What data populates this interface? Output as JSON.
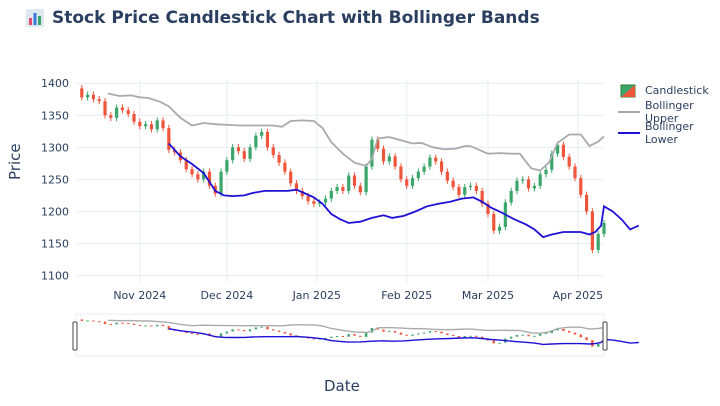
{
  "title": "Stock Price Candlestick Chart with Bollinger Bands",
  "title_icon": "bar-chart-icon",
  "colors": {
    "increasing": "#3aa66a",
    "decreasing": "#ef553b",
    "upper_band": "#aaaaaa",
    "lower_band": "#1f10d6",
    "grid": "#e8ecf2",
    "text": "#2a3f5f"
  },
  "chart_data": {
    "type": "candlestick",
    "xlabel": "Date",
    "ylabel": "Price",
    "ylim": [
      1090,
      1405
    ],
    "yticks": [
      1100,
      1150,
      1200,
      1250,
      1300,
      1350,
      1400
    ],
    "xticks": [
      {
        "date": "2024-11-01",
        "label": "Nov 2024"
      },
      {
        "date": "2024-12-01",
        "label": "Dec 2024"
      },
      {
        "date": "2025-01-01",
        "label": "Jan 2025"
      },
      {
        "date": "2025-02-01",
        "label": "Feb 2025"
      },
      {
        "date": "2025-03-01",
        "label": "Mar 2025"
      },
      {
        "date": "2025-04-01",
        "label": "Apr 2025"
      }
    ],
    "x_start": "2024-10-10",
    "x_end": "2025-04-10",
    "legend": {
      "position": "top-right",
      "items": [
        "Candlestick",
        "Bollinger Upper",
        "Bollinger Lower"
      ]
    },
    "rangeslider": true,
    "close": [
      [
        "2024-10-10",
        1392
      ],
      [
        "2024-10-12",
        1378
      ],
      [
        "2024-10-14",
        1382
      ],
      [
        "2024-10-16",
        1375
      ],
      [
        "2024-10-18",
        1372
      ],
      [
        "2024-10-20",
        1350
      ],
      [
        "2024-10-22",
        1346
      ],
      [
        "2024-10-24",
        1362
      ],
      [
        "2024-10-26",
        1358
      ],
      [
        "2024-10-28",
        1352
      ],
      [
        "2024-10-30",
        1340
      ],
      [
        "2024-11-01",
        1333
      ],
      [
        "2024-11-03",
        1336
      ],
      [
        "2024-11-05",
        1328
      ],
      [
        "2024-11-07",
        1342
      ],
      [
        "2024-11-09",
        1330
      ],
      [
        "2024-11-11",
        1296
      ],
      [
        "2024-11-13",
        1292
      ],
      [
        "2024-11-15",
        1280
      ],
      [
        "2024-11-17",
        1266
      ],
      [
        "2024-11-19",
        1258
      ],
      [
        "2024-11-21",
        1250
      ],
      [
        "2024-11-23",
        1262
      ],
      [
        "2024-11-25",
        1240
      ],
      [
        "2024-11-27",
        1228
      ],
      [
        "2024-11-29",
        1262
      ],
      [
        "2024-12-01",
        1280
      ],
      [
        "2024-12-03",
        1300
      ],
      [
        "2024-12-05",
        1294
      ],
      [
        "2024-12-07",
        1282
      ],
      [
        "2024-12-09",
        1300
      ],
      [
        "2024-12-11",
        1318
      ],
      [
        "2024-12-13",
        1324
      ],
      [
        "2024-12-15",
        1300
      ],
      [
        "2024-12-17",
        1288
      ],
      [
        "2024-12-19",
        1276
      ],
      [
        "2024-12-21",
        1262
      ],
      [
        "2024-12-23",
        1244
      ],
      [
        "2024-12-25",
        1232
      ],
      [
        "2024-12-27",
        1224
      ],
      [
        "2024-12-29",
        1216
      ],
      [
        "2024-12-31",
        1212
      ],
      [
        "2025-01-02",
        1214
      ],
      [
        "2025-01-04",
        1220
      ],
      [
        "2025-01-06",
        1232
      ],
      [
        "2025-01-08",
        1238
      ],
      [
        "2025-01-10",
        1232
      ],
      [
        "2025-01-12",
        1256
      ],
      [
        "2025-01-14",
        1240
      ],
      [
        "2025-01-16",
        1230
      ],
      [
        "2025-01-18",
        1270
      ],
      [
        "2025-01-20",
        1312
      ],
      [
        "2025-01-22",
        1298
      ],
      [
        "2025-01-24",
        1278
      ],
      [
        "2025-01-26",
        1286
      ],
      [
        "2025-01-28",
        1270
      ],
      [
        "2025-01-30",
        1250
      ],
      [
        "2025-02-01",
        1240
      ],
      [
        "2025-02-03",
        1252
      ],
      [
        "2025-02-05",
        1262
      ],
      [
        "2025-02-07",
        1270
      ],
      [
        "2025-02-09",
        1284
      ],
      [
        "2025-02-11",
        1278
      ],
      [
        "2025-02-13",
        1262
      ],
      [
        "2025-02-15",
        1248
      ],
      [
        "2025-02-17",
        1238
      ],
      [
        "2025-02-19",
        1226
      ],
      [
        "2025-02-21",
        1238
      ],
      [
        "2025-02-23",
        1240
      ],
      [
        "2025-02-25",
        1232
      ],
      [
        "2025-02-27",
        1212
      ],
      [
        "2025-03-01",
        1196
      ],
      [
        "2025-03-03",
        1170
      ],
      [
        "2025-03-05",
        1176
      ],
      [
        "2025-03-07",
        1214
      ],
      [
        "2025-03-09",
        1232
      ],
      [
        "2025-03-11",
        1248
      ],
      [
        "2025-03-13",
        1250
      ],
      [
        "2025-03-15",
        1236
      ],
      [
        "2025-03-17",
        1240
      ],
      [
        "2025-03-19",
        1258
      ],
      [
        "2025-03-21",
        1265
      ],
      [
        "2025-03-23",
        1290
      ],
      [
        "2025-03-25",
        1304
      ],
      [
        "2025-03-27",
        1285
      ],
      [
        "2025-03-29",
        1270
      ],
      [
        "2025-03-31",
        1252
      ],
      [
        "2025-04-02",
        1226
      ],
      [
        "2025-04-04",
        1200
      ],
      [
        "2025-04-06",
        1140
      ],
      [
        "2025-04-08",
        1165
      ],
      [
        "2025-04-10",
        1182
      ]
    ],
    "bollinger_upper": [
      [
        "2024-10-21",
        1384
      ],
      [
        "2024-10-25",
        1380
      ],
      [
        "2024-10-29",
        1381
      ],
      [
        "2024-11-01",
        1378
      ],
      [
        "2024-11-04",
        1377
      ],
      [
        "2024-11-08",
        1371
      ],
      [
        "2024-11-11",
        1364
      ],
      [
        "2024-11-15",
        1346
      ],
      [
        "2024-11-19",
        1334
      ],
      [
        "2024-11-23",
        1338
      ],
      [
        "2024-11-27",
        1336
      ],
      [
        "2024-12-01",
        1335
      ],
      [
        "2024-12-06",
        1334
      ],
      [
        "2024-12-10",
        1334
      ],
      [
        "2024-12-14",
        1334
      ],
      [
        "2024-12-17",
        1334
      ],
      [
        "2024-12-20",
        1332
      ],
      [
        "2024-12-23",
        1341
      ],
      [
        "2024-12-27",
        1342
      ],
      [
        "2024-12-31",
        1341
      ],
      [
        "2025-01-03",
        1330
      ],
      [
        "2025-01-06",
        1308
      ],
      [
        "2025-01-10",
        1290
      ],
      [
        "2025-01-14",
        1276
      ],
      [
        "2025-01-18",
        1271
      ],
      [
        "2025-01-20",
        1282
      ],
      [
        "2025-01-22",
        1314
      ],
      [
        "2025-01-26",
        1316
      ],
      [
        "2025-01-30",
        1311
      ],
      [
        "2025-02-03",
        1306
      ],
      [
        "2025-02-06",
        1307
      ],
      [
        "2025-02-10",
        1300
      ],
      [
        "2025-02-14",
        1297
      ],
      [
        "2025-02-18",
        1298
      ],
      [
        "2025-02-21",
        1302
      ],
      [
        "2025-02-23",
        1302
      ],
      [
        "2025-02-26",
        1296
      ],
      [
        "2025-03-01",
        1290
      ],
      [
        "2025-03-05",
        1291
      ],
      [
        "2025-03-09",
        1290
      ],
      [
        "2025-03-12",
        1290
      ],
      [
        "2025-03-14",
        1278
      ],
      [
        "2025-03-16",
        1267
      ],
      [
        "2025-03-19",
        1264
      ],
      [
        "2025-03-22",
        1276
      ],
      [
        "2025-03-25",
        1307
      ],
      [
        "2025-03-29",
        1320
      ],
      [
        "2025-04-02",
        1320
      ],
      [
        "2025-04-05",
        1302
      ],
      [
        "2025-04-08",
        1309
      ],
      [
        "2025-04-10",
        1317
      ]
    ],
    "bollinger_lower": [
      [
        "2024-11-11",
        1306
      ],
      [
        "2024-11-15",
        1286
      ],
      [
        "2024-11-19",
        1274
      ],
      [
        "2024-11-23",
        1260
      ],
      [
        "2024-11-27",
        1232
      ],
      [
        "2024-11-30",
        1225
      ],
      [
        "2024-12-03",
        1224
      ],
      [
        "2024-12-07",
        1225
      ],
      [
        "2024-12-10",
        1229
      ],
      [
        "2024-12-14",
        1232
      ],
      [
        "2024-12-18",
        1232
      ],
      [
        "2024-12-22",
        1232
      ],
      [
        "2024-12-25",
        1234
      ],
      [
        "2024-12-28",
        1228
      ],
      [
        "2024-12-31",
        1222
      ],
      [
        "2025-01-03",
        1212
      ],
      [
        "2025-01-06",
        1196
      ],
      [
        "2025-01-09",
        1188
      ],
      [
        "2025-01-12",
        1182
      ],
      [
        "2025-01-16",
        1184
      ],
      [
        "2025-01-20",
        1190
      ],
      [
        "2025-01-24",
        1194
      ],
      [
        "2025-01-27",
        1190
      ],
      [
        "2025-01-31",
        1193
      ],
      [
        "2025-02-04",
        1200
      ],
      [
        "2025-02-08",
        1208
      ],
      [
        "2025-02-12",
        1212
      ],
      [
        "2025-02-16",
        1215
      ],
      [
        "2025-02-20",
        1220
      ],
      [
        "2025-02-24",
        1222
      ],
      [
        "2025-02-27",
        1215
      ],
      [
        "2025-03-02",
        1206
      ],
      [
        "2025-03-05",
        1200
      ],
      [
        "2025-03-10",
        1188
      ],
      [
        "2025-03-14",
        1180
      ],
      [
        "2025-03-17",
        1172
      ],
      [
        "2025-03-20",
        1160
      ],
      [
        "2025-03-23",
        1164
      ],
      [
        "2025-03-27",
        1168
      ],
      [
        "2025-03-31",
        1168
      ],
      [
        "2025-04-02",
        1168
      ],
      [
        "2025-04-05",
        1164
      ],
      [
        "2025-04-07",
        1168
      ],
      [
        "2025-04-09",
        1178
      ],
      [
        "2025-04-10",
        1208
      ],
      [
        "2025-04-13",
        1200
      ],
      [
        "2025-04-16",
        1188
      ],
      [
        "2025-04-19",
        1172
      ],
      [
        "2025-04-22",
        1178
      ]
    ]
  }
}
